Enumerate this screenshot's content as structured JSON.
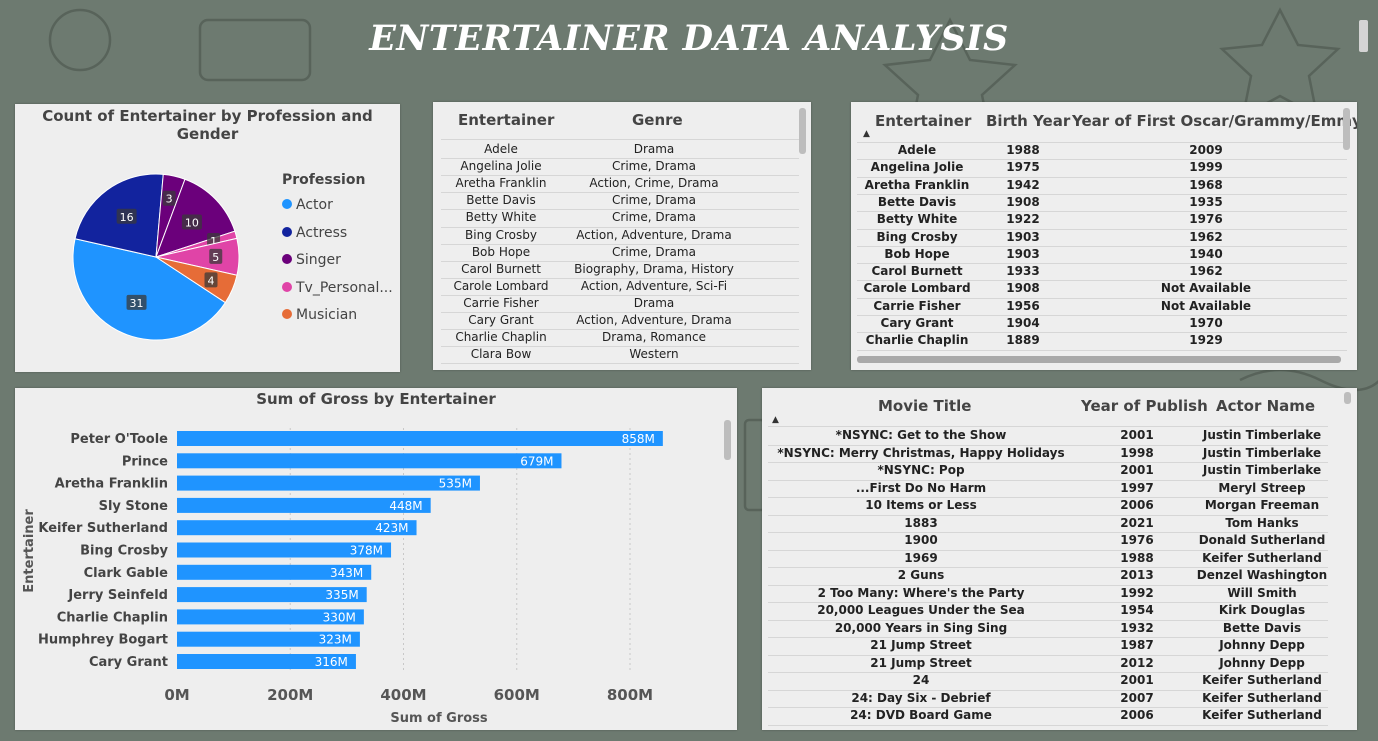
{
  "dashboard": {
    "title": "ENTERTAINER DATA ANALYSIS"
  },
  "pie": {
    "title": "Count of Entertainer by Profession and Gender",
    "legend_title": "Profession",
    "legend": [
      {
        "label": "Actor",
        "color": "#1f94ff"
      },
      {
        "label": "Actress",
        "color": "#12239e"
      },
      {
        "label": "Singer",
        "color": "#6b007b"
      },
      {
        "label": "Tv_Personal...",
        "color": "#e044a7"
      },
      {
        "label": "Musician",
        "color": "#e66c37"
      }
    ]
  },
  "genre_table": {
    "headers": [
      "Entertainer",
      "Genre"
    ],
    "rows": [
      [
        "Adele",
        "Drama"
      ],
      [
        "Angelina Jolie",
        "Crime, Drama"
      ],
      [
        "Aretha Franklin",
        "Action, Crime, Drama"
      ],
      [
        "Bette Davis",
        "Crime, Drama"
      ],
      [
        "Betty White",
        "Crime, Drama"
      ],
      [
        "Bing Crosby",
        "Action, Adventure, Drama"
      ],
      [
        "Bob Hope",
        "Crime, Drama"
      ],
      [
        "Carol Burnett",
        "Biography, Drama, History"
      ],
      [
        "Carole Lombard",
        "Action, Adventure, Sci-Fi"
      ],
      [
        "Carrie Fisher",
        "Drama"
      ],
      [
        "Cary Grant",
        "Action, Adventure, Drama"
      ],
      [
        "Charlie Chaplin",
        "Drama, Romance"
      ],
      [
        "Clara Bow",
        "Western"
      ]
    ]
  },
  "award_table": {
    "headers": [
      "Entertainer",
      "Birth Year",
      "Year of First Oscar/Grammy/Emmy"
    ],
    "rows": [
      [
        "Adele",
        "1988",
        "2009"
      ],
      [
        "Angelina Jolie",
        "1975",
        "1999"
      ],
      [
        "Aretha Franklin",
        "1942",
        "1968"
      ],
      [
        "Bette Davis",
        "1908",
        "1935"
      ],
      [
        "Betty White",
        "1922",
        "1976"
      ],
      [
        "Bing Crosby",
        "1903",
        "1962"
      ],
      [
        "Bob Hope",
        "1903",
        "1940"
      ],
      [
        "Carol Burnett",
        "1933",
        "1962"
      ],
      [
        "Carole Lombard",
        "1908",
        "Not Available"
      ],
      [
        "Carrie Fisher",
        "1956",
        "Not Available"
      ],
      [
        "Cary Grant",
        "1904",
        "1970"
      ],
      [
        "Charlie Chaplin",
        "1889",
        "1929"
      ]
    ]
  },
  "movie_table": {
    "headers": [
      "Movie Title",
      "Year of Publish",
      "Actor Name"
    ],
    "rows": [
      [
        "*NSYNC: Get to the Show",
        "2001",
        "Justin Timberlake"
      ],
      [
        "*NSYNC: Merry Christmas, Happy Holidays",
        "1998",
        "Justin Timberlake"
      ],
      [
        "*NSYNC: Pop",
        "2001",
        "Justin Timberlake"
      ],
      [
        "...First Do No Harm",
        "1997",
        "Meryl Streep"
      ],
      [
        "10 Items or Less",
        "2006",
        "Morgan Freeman"
      ],
      [
        "1883",
        "2021",
        "Tom Hanks"
      ],
      [
        "1900",
        "1976",
        "Donald Sutherland"
      ],
      [
        "1969",
        "1988",
        "Keifer Sutherland"
      ],
      [
        "2 Guns",
        "2013",
        "Denzel Washington"
      ],
      [
        "2 Too Many: Where's the Party",
        "1992",
        "Will Smith"
      ],
      [
        "20,000 Leagues Under the Sea",
        "1954",
        "Kirk Douglas"
      ],
      [
        "20,000 Years in Sing Sing",
        "1932",
        "Bette Davis"
      ],
      [
        "21 Jump Street",
        "1987",
        "Johnny Depp"
      ],
      [
        "21 Jump Street",
        "2012",
        "Johnny Depp"
      ],
      [
        "24",
        "2001",
        "Keifer Sutherland"
      ],
      [
        "24: Day Six - Debrief",
        "2007",
        "Keifer Sutherland"
      ],
      [
        "24: DVD Board Game",
        "2006",
        "Keifer Sutherland"
      ]
    ]
  },
  "chart_data": [
    {
      "type": "pie",
      "title": "Count of Entertainer by Profession and Gender",
      "legend_title": "Profession",
      "legend_position": "right",
      "slices": [
        {
          "label": "Actor",
          "value": 31,
          "color": "#1f94ff"
        },
        {
          "label": "Actress",
          "value": 16,
          "color": "#12239e"
        },
        {
          "label": "Singer",
          "value": 3,
          "color": "#6b007b"
        },
        {
          "label": "Singer",
          "value": 10,
          "color": "#6b007b"
        },
        {
          "label": "Tv_Personal...",
          "value": 1,
          "color": "#e044a7"
        },
        {
          "label": "Tv_Personal...",
          "value": 5,
          "color": "#e044a7"
        },
        {
          "label": "Musician",
          "value": 4,
          "color": "#e66c37"
        }
      ]
    },
    {
      "type": "bar",
      "orientation": "horizontal",
      "title": "Sum of Gross by Entertainer",
      "xlabel": "Sum of Gross",
      "ylabel": "Entertainer",
      "categories": [
        "Peter O'Toole",
        "Prince",
        "Aretha Franklin",
        "Sly Stone",
        "Keifer Sutherland",
        "Bing Crosby",
        "Clark Gable",
        "Jerry Seinfeld",
        "Charlie Chaplin",
        "Humphrey Bogart",
        "Cary Grant"
      ],
      "values": [
        858,
        679,
        535,
        448,
        423,
        378,
        343,
        335,
        330,
        323,
        316
      ],
      "data_labels": [
        "858M",
        "679M",
        "535M",
        "448M",
        "423M",
        "378M",
        "343M",
        "335M",
        "330M",
        "323M",
        "316M"
      ],
      "xlim": [
        0,
        900
      ],
      "xticks": [
        0,
        200,
        400,
        600,
        800
      ],
      "xtick_labels": [
        "0M",
        "200M",
        "400M",
        "600M",
        "800M"
      ],
      "bar_color": "#1f94ff",
      "grid": true
    }
  ]
}
